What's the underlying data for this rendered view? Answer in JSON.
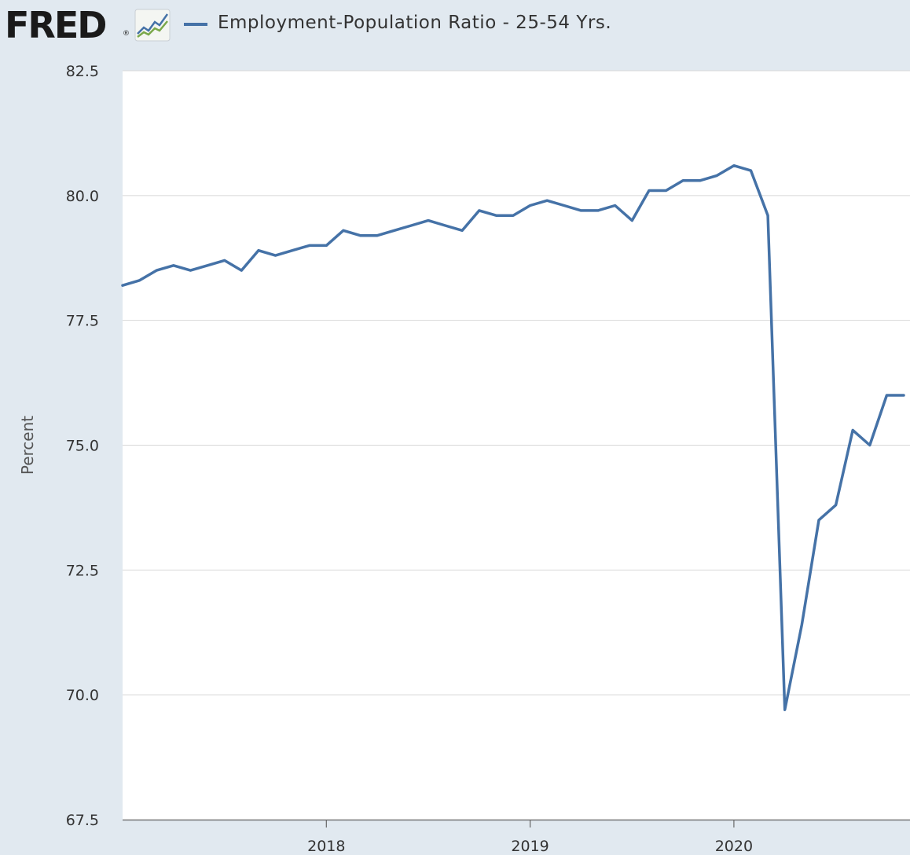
{
  "header": {
    "logo_text": "FRED",
    "logo_reg": "®",
    "legend_label": "Employment-Population Ratio - 25-54 Yrs."
  },
  "colors": {
    "line": "#4572a7",
    "background": "#e1e9f0",
    "plot_background": "#ffffff",
    "grid": "#d8d8d8"
  },
  "chart_data": {
    "type": "line",
    "title": "",
    "xlabel": "",
    "ylabel": "Percent",
    "ylim": [
      67.5,
      82.5
    ],
    "y_ticks": [
      "67.5",
      "70.0",
      "72.5",
      "75.0",
      "77.5",
      "80.0",
      "82.5"
    ],
    "y_tick_values": [
      67.5,
      70.0,
      72.5,
      75.0,
      77.5,
      80.0,
      82.5
    ],
    "x_ticks": [
      "2018",
      "2019",
      "2020"
    ],
    "x_tick_values": [
      2018,
      2019,
      2020
    ],
    "x_range": [
      "2017-01",
      "2020-11"
    ],
    "series": [
      {
        "name": "Employment-Population Ratio - 25-54 Yrs.",
        "x": [
          "2017-01",
          "2017-02",
          "2017-03",
          "2017-04",
          "2017-05",
          "2017-06",
          "2017-07",
          "2017-08",
          "2017-09",
          "2017-10",
          "2017-11",
          "2017-12",
          "2018-01",
          "2018-02",
          "2018-03",
          "2018-04",
          "2018-05",
          "2018-06",
          "2018-07",
          "2018-08",
          "2018-09",
          "2018-10",
          "2018-11",
          "2018-12",
          "2019-01",
          "2019-02",
          "2019-03",
          "2019-04",
          "2019-05",
          "2019-06",
          "2019-07",
          "2019-08",
          "2019-09",
          "2019-10",
          "2019-11",
          "2019-12",
          "2020-01",
          "2020-02",
          "2020-03",
          "2020-04",
          "2020-05",
          "2020-06",
          "2020-07",
          "2020-08",
          "2020-09",
          "2020-10",
          "2020-11"
        ],
        "values": [
          78.2,
          78.3,
          78.5,
          78.6,
          78.5,
          78.6,
          78.7,
          78.5,
          78.9,
          78.8,
          78.9,
          79.0,
          79.0,
          79.3,
          79.2,
          79.2,
          79.3,
          79.4,
          79.5,
          79.4,
          79.3,
          79.7,
          79.6,
          79.6,
          79.8,
          79.9,
          79.8,
          79.7,
          79.7,
          79.8,
          79.5,
          80.1,
          80.1,
          80.3,
          80.3,
          80.4,
          80.6,
          80.5,
          79.6,
          69.7,
          71.4,
          73.5,
          73.8,
          75.3,
          75.0,
          76.0,
          76.0
        ]
      }
    ]
  }
}
